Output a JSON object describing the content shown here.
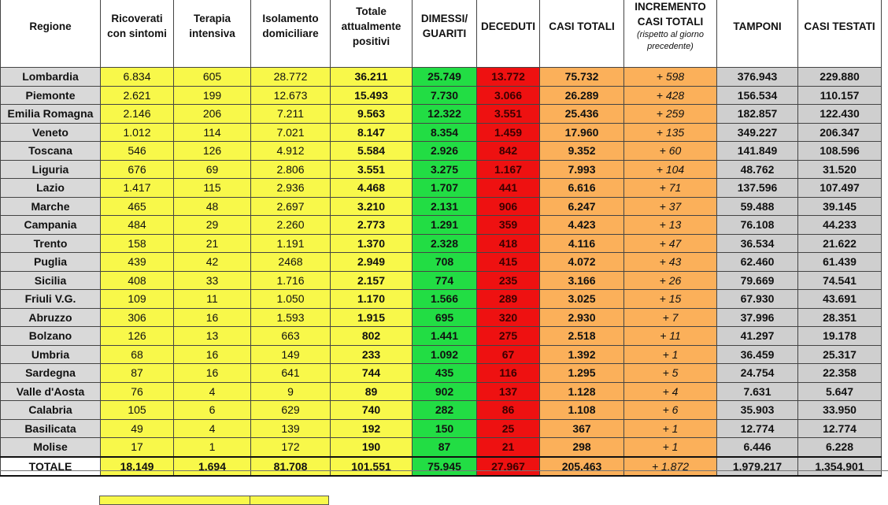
{
  "chart_data": {
    "type": "table",
    "columns": [
      "Regione",
      "Ricoverati con sintomi",
      "Terapia intensiva",
      "Isolamento domiciliare",
      "Totale attualmente positivi",
      "DIMESSI/ GUARITI",
      "DECEDUTI",
      "CASI TOTALI",
      "INCREMENTO CASI TOTALI",
      "TAMPONI",
      "CASI TESTATI"
    ],
    "incremento_note": "(rispetto al giorno precedente)",
    "rows": [
      [
        "Lombardia",
        "6.834",
        "605",
        "28.772",
        "36.211",
        "25.749",
        "13.772",
        "75.732",
        "+ 598",
        "376.943",
        "229.880"
      ],
      [
        "Piemonte",
        "2.621",
        "199",
        "12.673",
        "15.493",
        "7.730",
        "3.066",
        "26.289",
        "+ 428",
        "156.534",
        "110.157"
      ],
      [
        "Emilia Romagna",
        "2.146",
        "206",
        "7.211",
        "9.563",
        "12.322",
        "3.551",
        "25.436",
        "+ 259",
        "182.857",
        "122.430"
      ],
      [
        "Veneto",
        "1.012",
        "114",
        "7.021",
        "8.147",
        "8.354",
        "1.459",
        "17.960",
        "+ 135",
        "349.227",
        "206.347"
      ],
      [
        "Toscana",
        "546",
        "126",
        "4.912",
        "5.584",
        "2.926",
        "842",
        "9.352",
        "+ 60",
        "141.849",
        "108.596"
      ],
      [
        "Liguria",
        "676",
        "69",
        "2.806",
        "3.551",
        "3.275",
        "1.167",
        "7.993",
        "+ 104",
        "48.762",
        "31.520"
      ],
      [
        "Lazio",
        "1.417",
        "115",
        "2.936",
        "4.468",
        "1.707",
        "441",
        "6.616",
        "+ 71",
        "137.596",
        "107.497"
      ],
      [
        "Marche",
        "465",
        "48",
        "2.697",
        "3.210",
        "2.131",
        "906",
        "6.247",
        "+ 37",
        "59.488",
        "39.145"
      ],
      [
        "Campania",
        "484",
        "29",
        "2.260",
        "2.773",
        "1.291",
        "359",
        "4.423",
        "+ 13",
        "76.108",
        "44.233"
      ],
      [
        "Trento",
        "158",
        "21",
        "1.191",
        "1.370",
        "2.328",
        "418",
        "4.116",
        "+ 47",
        "36.534",
        "21.622"
      ],
      [
        "Puglia",
        "439",
        "42",
        "2468",
        "2.949",
        "708",
        "415",
        "4.072",
        "+ 43",
        "62.460",
        "61.439"
      ],
      [
        "Sicilia",
        "408",
        "33",
        "1.716",
        "2.157",
        "774",
        "235",
        "3.166",
        "+ 26",
        "79.669",
        "74.541"
      ],
      [
        "Friuli V.G.",
        "109",
        "11",
        "1.050",
        "1.170",
        "1.566",
        "289",
        "3.025",
        "+ 15",
        "67.930",
        "43.691"
      ],
      [
        "Abruzzo",
        "306",
        "16",
        "1.593",
        "1.915",
        "695",
        "320",
        "2.930",
        "+ 7",
        "37.996",
        "28.351"
      ],
      [
        "Bolzano",
        "126",
        "13",
        "663",
        "802",
        "1.441",
        "275",
        "2.518",
        "+ 11",
        "41.297",
        "19.178"
      ],
      [
        "Umbria",
        "68",
        "16",
        "149",
        "233",
        "1.092",
        "67",
        "1.392",
        "+ 1",
        "36.459",
        "25.317"
      ],
      [
        "Sardegna",
        "87",
        "16",
        "641",
        "744",
        "435",
        "116",
        "1.295",
        "+ 5",
        "24.754",
        "22.358"
      ],
      [
        "Valle d'Aosta",
        "76",
        "4",
        "9",
        "89",
        "902",
        "137",
        "1.128",
        "+ 4",
        "7.631",
        "5.647"
      ],
      [
        "Calabria",
        "105",
        "6",
        "629",
        "740",
        "282",
        "86",
        "1.108",
        "+ 6",
        "35.903",
        "33.950"
      ],
      [
        "Basilicata",
        "49",
        "4",
        "139",
        "192",
        "150",
        "25",
        "367",
        "+ 1",
        "12.774",
        "12.774"
      ],
      [
        "Molise",
        "17",
        "1",
        "172",
        "190",
        "87",
        "21",
        "298",
        "+ 1",
        "6.446",
        "6.228"
      ]
    ],
    "total": [
      "TOTALE",
      "18.149",
      "1.694",
      "81.708",
      "101.551",
      "75.945",
      "27.967",
      "205.463",
      "+ 1.872",
      "1.979.217",
      "1.354.901"
    ],
    "colors": {
      "region": "#d9d9d9",
      "yellow": "#f8f84a",
      "green": "#22dd44",
      "red": "#ee1111",
      "orange": "#fbb05a",
      "grey": "#cfcfcf"
    }
  }
}
